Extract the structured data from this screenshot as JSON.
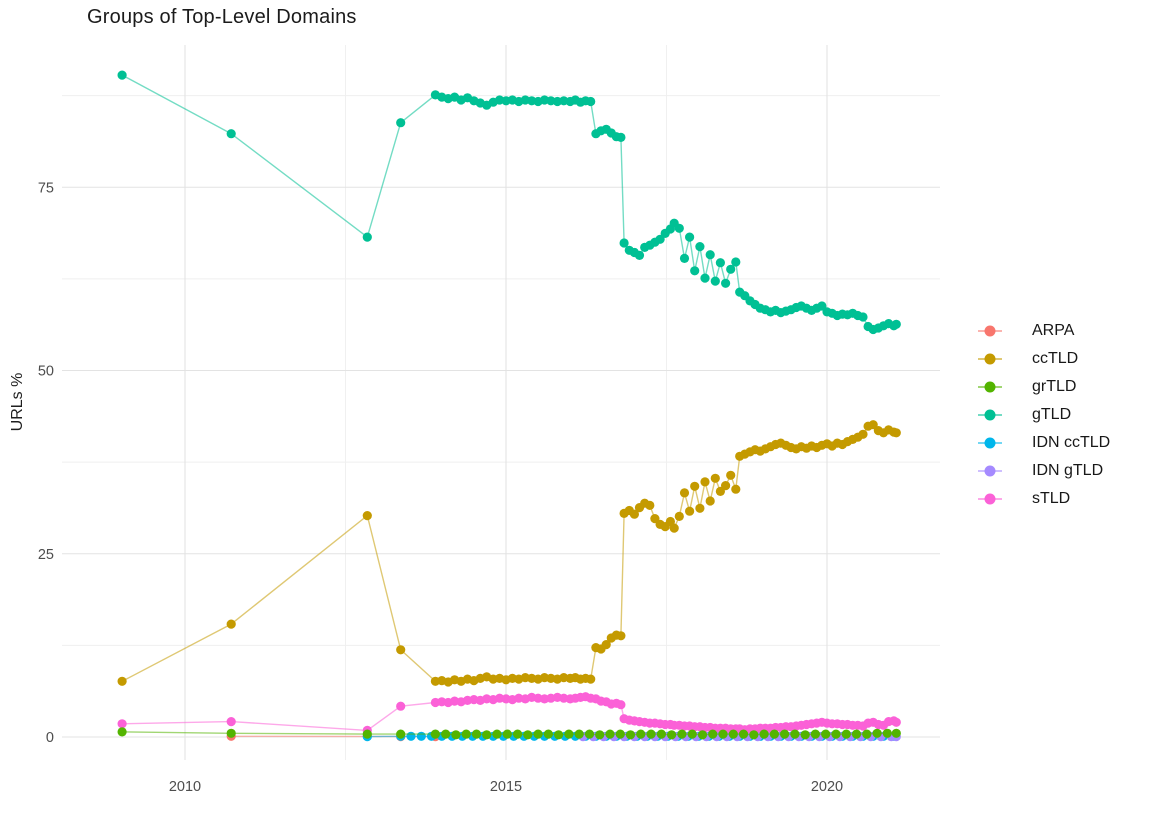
{
  "title": "Groups of Top-Level Domains",
  "axes": {
    "y_label": "URLs %",
    "y_ticks": [
      "0",
      "25",
      "50",
      "75"
    ],
    "x_ticks": [
      "2010",
      "2015",
      "2020"
    ],
    "tick_color": "#4d4d4d",
    "grid_major_color": "#e3e3e3",
    "grid_minor_color": "#efefef"
  },
  "chart_data": {
    "type": "line",
    "title": "Groups of Top-Level Domains",
    "xlabel": "",
    "ylabel": "URLs %",
    "xlim": [
      2008.1,
      2021.85
    ],
    "ylim": [
      -3.3,
      94.4
    ],
    "x_major_ticks": [
      2010,
      2015,
      2020
    ],
    "x_minor_ticks": [
      2012.5,
      2017.5
    ],
    "y_major_ticks": [
      0,
      25,
      50,
      75
    ],
    "y_minor_ticks": [
      12.5,
      37.5,
      62.5,
      87.5
    ],
    "grid": true,
    "legend_position": "right",
    "marker": "point",
    "series": [
      {
        "name": "ARPA",
        "color": "#F8766D",
        "x": [
          2010.72,
          2012.84,
          2013.36,
          2013.9
        ],
        "y": [
          0.1,
          0.08,
          0.05,
          0.05
        ]
      },
      {
        "name": "ccTLD",
        "color": "#C49A00",
        "x": [
          2009.02,
          2010.72,
          2012.84,
          2013.36,
          2013.9,
          2014.0,
          2014.1,
          2014.2,
          2014.3,
          2014.4,
          2014.5,
          2014.6,
          2014.7,
          2014.8,
          2014.9,
          2015.0,
          2015.1,
          2015.2,
          2015.3,
          2015.4,
          2015.5,
          2015.6,
          2015.7,
          2015.8,
          2015.9,
          2016.0,
          2016.08,
          2016.16,
          2016.24,
          2016.32,
          2016.4,
          2016.48,
          2016.56,
          2016.64,
          2016.72,
          2016.79,
          2016.84,
          2016.92,
          2017.0,
          2017.08,
          2017.16,
          2017.24,
          2017.32,
          2017.4,
          2017.48,
          2017.56,
          2017.62,
          2017.7,
          2017.78,
          2017.86,
          2017.94,
          2018.02,
          2018.1,
          2018.18,
          2018.26,
          2018.34,
          2018.42,
          2018.5,
          2018.58,
          2018.64,
          2018.72,
          2018.8,
          2018.88,
          2018.96,
          2019.04,
          2019.12,
          2019.2,
          2019.28,
          2019.36,
          2019.44,
          2019.52,
          2019.6,
          2019.68,
          2019.76,
          2019.84,
          2019.92,
          2020.0,
          2020.08,
          2020.16,
          2020.24,
          2020.32,
          2020.4,
          2020.48,
          2020.56,
          2020.64,
          2020.72,
          2020.8,
          2020.88,
          2020.96,
          2021.04,
          2021.08
        ],
        "y": [
          7.6,
          15.4,
          30.2,
          11.9,
          7.6,
          7.7,
          7.5,
          7.8,
          7.6,
          7.9,
          7.7,
          8.0,
          8.2,
          7.9,
          8.0,
          7.8,
          8.0,
          7.9,
          8.1,
          8.0,
          7.9,
          8.1,
          8.0,
          7.9,
          8.1,
          8.0,
          8.1,
          7.9,
          8.0,
          7.9,
          12.2,
          12.0,
          12.6,
          13.5,
          13.9,
          13.8,
          30.5,
          30.9,
          30.4,
          31.3,
          31.9,
          31.6,
          29.8,
          29.0,
          28.7,
          29.4,
          28.5,
          30.1,
          33.3,
          30.8,
          34.2,
          31.2,
          34.8,
          32.2,
          35.3,
          33.5,
          34.3,
          35.7,
          33.8,
          38.3,
          38.6,
          38.9,
          39.2,
          39.0,
          39.3,
          39.6,
          39.9,
          40.1,
          39.8,
          39.5,
          39.3,
          39.6,
          39.4,
          39.7,
          39.5,
          39.8,
          40.0,
          39.7,
          40.1,
          39.9,
          40.3,
          40.6,
          40.9,
          41.3,
          42.4,
          42.6,
          41.8,
          41.5,
          41.9,
          41.6,
          41.5
        ]
      },
      {
        "name": "grTLD",
        "color": "#53B400",
        "x": [
          2009.02,
          2010.72,
          2012.84,
          2013.36,
          2013.9,
          2014.06,
          2014.22,
          2014.38,
          2014.54,
          2014.7,
          2014.86,
          2015.02,
          2015.18,
          2015.34,
          2015.5,
          2015.66,
          2015.82,
          2015.98,
          2016.14,
          2016.3,
          2016.46,
          2016.62,
          2016.78,
          2016.94,
          2017.1,
          2017.26,
          2017.42,
          2017.58,
          2017.74,
          2017.9,
          2018.06,
          2018.22,
          2018.38,
          2018.54,
          2018.7,
          2018.86,
          2019.02,
          2019.18,
          2019.34,
          2019.5,
          2019.66,
          2019.82,
          2019.98,
          2020.14,
          2020.3,
          2020.46,
          2020.62,
          2020.78,
          2020.94,
          2021.08
        ],
        "y": [
          0.7,
          0.5,
          0.4,
          0.4,
          0.4,
          0.4,
          0.3,
          0.4,
          0.4,
          0.3,
          0.4,
          0.4,
          0.4,
          0.3,
          0.4,
          0.4,
          0.3,
          0.4,
          0.4,
          0.4,
          0.3,
          0.4,
          0.4,
          0.3,
          0.4,
          0.4,
          0.4,
          0.3,
          0.4,
          0.4,
          0.3,
          0.4,
          0.4,
          0.4,
          0.4,
          0.3,
          0.4,
          0.4,
          0.4,
          0.4,
          0.3,
          0.4,
          0.4,
          0.4,
          0.4,
          0.4,
          0.4,
          0.5,
          0.5,
          0.5
        ]
      },
      {
        "name": "gTLD",
        "color": "#00C094",
        "x": [
          2009.02,
          2010.72,
          2012.84,
          2013.36,
          2013.9,
          2014.0,
          2014.1,
          2014.2,
          2014.3,
          2014.4,
          2014.5,
          2014.6,
          2014.7,
          2014.8,
          2014.9,
          2015.0,
          2015.1,
          2015.2,
          2015.3,
          2015.4,
          2015.5,
          2015.6,
          2015.7,
          2015.8,
          2015.9,
          2016.0,
          2016.08,
          2016.16,
          2016.24,
          2016.32,
          2016.4,
          2016.48,
          2016.56,
          2016.64,
          2016.72,
          2016.79,
          2016.84,
          2016.92,
          2017.0,
          2017.08,
          2017.16,
          2017.24,
          2017.32,
          2017.4,
          2017.48,
          2017.56,
          2017.62,
          2017.7,
          2017.78,
          2017.86,
          2017.94,
          2018.02,
          2018.1,
          2018.18,
          2018.26,
          2018.34,
          2018.42,
          2018.5,
          2018.58,
          2018.64,
          2018.72,
          2018.8,
          2018.88,
          2018.96,
          2019.04,
          2019.12,
          2019.2,
          2019.28,
          2019.36,
          2019.44,
          2019.52,
          2019.6,
          2019.68,
          2019.76,
          2019.84,
          2019.92,
          2020.0,
          2020.08,
          2020.16,
          2020.24,
          2020.32,
          2020.4,
          2020.48,
          2020.56,
          2020.64,
          2020.72,
          2020.8,
          2020.88,
          2020.96,
          2021.04,
          2021.08
        ],
        "y": [
          90.3,
          82.3,
          68.2,
          83.8,
          87.6,
          87.3,
          87.1,
          87.3,
          86.9,
          87.2,
          86.8,
          86.5,
          86.2,
          86.6,
          86.9,
          86.8,
          86.9,
          86.7,
          86.9,
          86.8,
          86.7,
          86.9,
          86.8,
          86.7,
          86.8,
          86.7,
          86.9,
          86.6,
          86.8,
          86.7,
          82.3,
          82.7,
          82.9,
          82.4,
          81.9,
          81.8,
          67.4,
          66.4,
          66.1,
          65.7,
          66.8,
          67.1,
          67.5,
          67.9,
          68.7,
          69.3,
          70.1,
          69.4,
          65.3,
          68.2,
          63.6,
          66.9,
          62.6,
          65.8,
          62.2,
          64.7,
          61.9,
          63.8,
          64.8,
          60.7,
          60.2,
          59.5,
          59.0,
          58.5,
          58.3,
          58.0,
          58.2,
          57.9,
          58.1,
          58.3,
          58.6,
          58.8,
          58.5,
          58.2,
          58.5,
          58.8,
          58.0,
          57.8,
          57.5,
          57.7,
          57.6,
          57.8,
          57.5,
          57.3,
          56.0,
          55.6,
          55.8,
          56.1,
          56.4,
          56.1,
          56.3
        ]
      },
      {
        "name": "IDN ccTLD",
        "color": "#00B6EB",
        "x": [
          2012.84,
          2013.36,
          2013.52,
          2013.68,
          2013.84,
          2014.0,
          2014.16,
          2014.32,
          2014.48,
          2014.64,
          2014.8,
          2014.96,
          2015.12,
          2015.28,
          2015.44,
          2015.6,
          2015.76,
          2015.92,
          2016.08,
          2016.24,
          2016.4,
          2016.56,
          2016.72,
          2016.88,
          2017.04,
          2017.2,
          2017.36,
          2017.52,
          2017.68,
          2017.84,
          2018.0,
          2018.16,
          2018.32,
          2018.48,
          2018.64,
          2018.8,
          2018.96,
          2019.12,
          2019.28,
          2019.44,
          2019.6,
          2019.76,
          2019.92,
          2020.08,
          2020.24,
          2020.4,
          2020.56,
          2020.72,
          2020.88,
          2021.04
        ],
        "y": [
          0.05,
          0.1,
          0.1,
          0.1,
          0.1,
          0.1,
          0.1,
          0.1,
          0.1,
          0.1,
          0.1,
          0.1,
          0.1,
          0.1,
          0.1,
          0.1,
          0.1,
          0.1,
          0.1,
          0.1,
          0.1,
          0.1,
          0.1,
          0.1,
          0.1,
          0.1,
          0.1,
          0.1,
          0.1,
          0.1,
          0.1,
          0.1,
          0.1,
          0.1,
          0.1,
          0.1,
          0.1,
          0.1,
          0.1,
          0.1,
          0.1,
          0.1,
          0.1,
          0.1,
          0.1,
          0.1,
          0.1,
          0.1,
          0.1,
          0.1
        ]
      },
      {
        "name": "IDN gTLD",
        "color": "#A58AFF",
        "x": [
          2016.2,
          2016.36,
          2016.52,
          2016.68,
          2016.84,
          2017.0,
          2017.16,
          2017.32,
          2017.48,
          2017.64,
          2017.8,
          2017.96,
          2018.12,
          2018.28,
          2018.44,
          2018.6,
          2018.76,
          2018.92,
          2019.08,
          2019.24,
          2019.4,
          2019.56,
          2019.72,
          2019.88,
          2020.04,
          2020.2,
          2020.36,
          2020.52,
          2020.68,
          2020.84,
          2021.0,
          2021.08
        ],
        "y": [
          0.05,
          0.05,
          0.05,
          0.05,
          0.05,
          0.05,
          0.05,
          0.05,
          0.05,
          0.05,
          0.05,
          0.05,
          0.05,
          0.05,
          0.05,
          0.05,
          0.05,
          0.05,
          0.05,
          0.05,
          0.05,
          0.05,
          0.05,
          0.05,
          0.05,
          0.05,
          0.05,
          0.05,
          0.05,
          0.05,
          0.05,
          0.05
        ]
      },
      {
        "name": "sTLD",
        "color": "#FB61D7",
        "x": [
          2009.02,
          2010.72,
          2012.84,
          2013.36,
          2013.9,
          2014.0,
          2014.1,
          2014.2,
          2014.3,
          2014.4,
          2014.5,
          2014.6,
          2014.7,
          2014.8,
          2014.9,
          2015.0,
          2015.1,
          2015.2,
          2015.3,
          2015.4,
          2015.5,
          2015.6,
          2015.7,
          2015.8,
          2015.9,
          2016.0,
          2016.08,
          2016.16,
          2016.24,
          2016.32,
          2016.4,
          2016.48,
          2016.56,
          2016.64,
          2016.72,
          2016.79,
          2016.84,
          2016.92,
          2017.0,
          2017.08,
          2017.16,
          2017.24,
          2017.32,
          2017.4,
          2017.48,
          2017.56,
          2017.62,
          2017.7,
          2017.78,
          2017.86,
          2017.94,
          2018.02,
          2018.1,
          2018.18,
          2018.26,
          2018.34,
          2018.42,
          2018.5,
          2018.58,
          2018.64,
          2018.72,
          2018.8,
          2018.88,
          2018.96,
          2019.04,
          2019.12,
          2019.2,
          2019.28,
          2019.36,
          2019.44,
          2019.52,
          2019.6,
          2019.68,
          2019.76,
          2019.84,
          2019.92,
          2020.0,
          2020.08,
          2020.16,
          2020.24,
          2020.32,
          2020.4,
          2020.48,
          2020.56,
          2020.64,
          2020.72,
          2020.8,
          2020.88,
          2020.96,
          2021.04,
          2021.08
        ],
        "y": [
          1.8,
          2.1,
          0.9,
          4.2,
          4.7,
          4.8,
          4.7,
          4.9,
          4.8,
          5.0,
          5.1,
          5.0,
          5.2,
          5.1,
          5.3,
          5.2,
          5.1,
          5.3,
          5.2,
          5.4,
          5.3,
          5.2,
          5.3,
          5.4,
          5.3,
          5.2,
          5.3,
          5.4,
          5.5,
          5.3,
          5.2,
          4.9,
          4.8,
          4.5,
          4.6,
          4.4,
          2.5,
          2.3,
          2.2,
          2.1,
          2.0,
          1.9,
          1.9,
          1.8,
          1.7,
          1.7,
          1.6,
          1.6,
          1.5,
          1.5,
          1.4,
          1.4,
          1.3,
          1.3,
          1.2,
          1.2,
          1.2,
          1.1,
          1.1,
          1.1,
          1.0,
          1.1,
          1.1,
          1.2,
          1.2,
          1.2,
          1.3,
          1.3,
          1.4,
          1.4,
          1.5,
          1.6,
          1.7,
          1.8,
          1.9,
          2.0,
          1.9,
          1.8,
          1.8,
          1.7,
          1.7,
          1.6,
          1.6,
          1.5,
          1.9,
          2.0,
          1.7,
          1.6,
          2.1,
          2.2,
          2.0
        ]
      }
    ]
  },
  "legend": {
    "items": [
      "ARPA",
      "ccTLD",
      "grTLD",
      "gTLD",
      "IDN ccTLD",
      "IDN gTLD",
      "sTLD"
    ]
  }
}
